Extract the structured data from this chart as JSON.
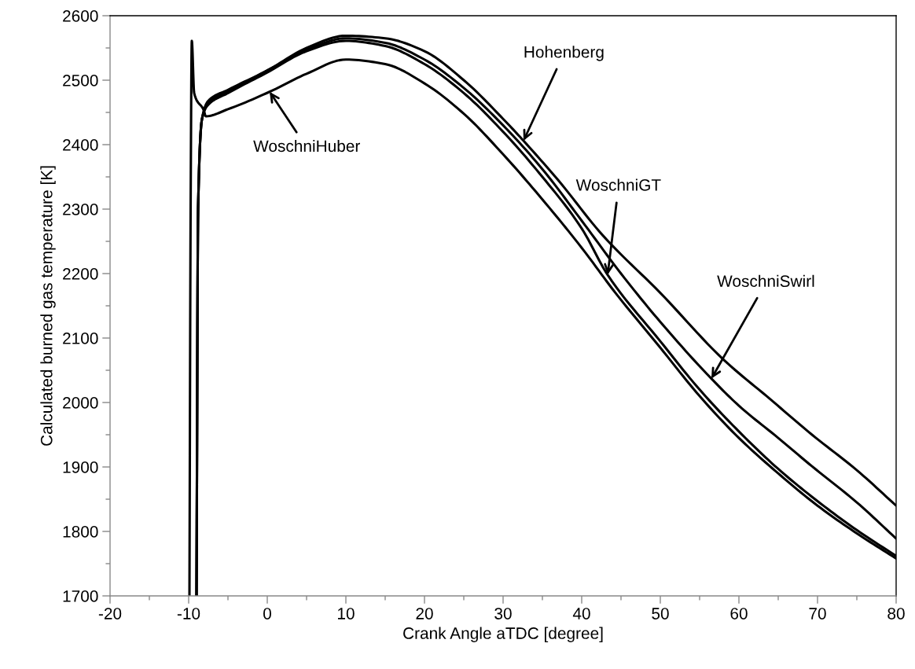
{
  "chart_data": {
    "type": "line",
    "xlabel": "Crank Angle aTDC [degree]",
    "ylabel": "Calculated burned gas temperature [K]",
    "xlim": [
      -20,
      80
    ],
    "ylim": [
      1700,
      2600
    ],
    "xticks": [
      -20,
      -10,
      0,
      10,
      20,
      30,
      40,
      50,
      60,
      70,
      80
    ],
    "yticks": [
      1700,
      1800,
      1900,
      2000,
      2100,
      2200,
      2300,
      2400,
      2500,
      2600
    ],
    "marker": "none",
    "line_style": "solid",
    "series": [
      {
        "color": "#000000",
        "x": [
          -9.0,
          -8.8,
          -8.3,
          -7.5,
          -5,
          0,
          5,
          10,
          15,
          20,
          25,
          30,
          32.6,
          37,
          42.7,
          50,
          58,
          64,
          69.3,
          75,
          80
        ],
        "values": [
          1700,
          2300,
          2440,
          2468,
          2485,
          2515,
          2550,
          2569,
          2565,
          2545,
          2500,
          2440,
          2406,
          2345,
          2259,
          2170,
          2067,
          2005,
          1950,
          1895,
          1840
        ]
      },
      {
        "color": "#000000",
        "x": [
          -9.0,
          -8.8,
          -8.3,
          -7.5,
          -5,
          0,
          5,
          10,
          15,
          20,
          25,
          30,
          35,
          40,
          45,
          50,
          56.5,
          60,
          65,
          69.3,
          75,
          80
        ],
        "values": [
          1700,
          2300,
          2440,
          2465,
          2482,
          2515,
          2547,
          2565,
          2558,
          2532,
          2488,
          2430,
          2362,
          2282,
          2200,
          2125,
          2037,
          1995,
          1945,
          1901,
          1845,
          1789
        ]
      },
      {
        "color": "#000000",
        "x": [
          -9.0,
          -8.8,
          -8.3,
          -7.5,
          -5,
          0,
          5,
          10,
          15,
          20,
          25,
          30,
          35,
          40,
          43.3,
          50,
          55,
          60,
          65,
          70,
          75,
          80
        ],
        "values": [
          1700,
          2300,
          2440,
          2462,
          2480,
          2512,
          2545,
          2561,
          2553,
          2525,
          2480,
          2420,
          2350,
          2270,
          2198,
          2095,
          2020,
          1955,
          1897,
          1847,
          1802,
          1762
        ]
      },
      {
        "color": "#000000",
        "x": [
          -9.9,
          -9.75,
          -9.6,
          -9.3,
          -8.1,
          -7.8,
          -5,
          0.3,
          5,
          10,
          15,
          20,
          25,
          30,
          35,
          40,
          44.3,
          50,
          55,
          60,
          65,
          70,
          75,
          80
        ],
        "values": [
          1700,
          2300,
          2561,
          2480,
          2454,
          2444,
          2455,
          2482,
          2510,
          2532,
          2525,
          2495,
          2448,
          2385,
          2315,
          2240,
          2170,
          2085,
          2010,
          1945,
          1890,
          1840,
          1797,
          1758
        ]
      }
    ],
    "annotations": [
      {
        "text": "Hohenberg",
        "x": 32.6,
        "y": 2406
      },
      {
        "text": "WoschniGT",
        "x": 43.3,
        "y": 2198
      },
      {
        "text": "WoschniSwirl",
        "x": 56.5,
        "y": 2037
      },
      {
        "text": "WoschniHuber",
        "x": 0.3,
        "y": 2482
      }
    ]
  }
}
